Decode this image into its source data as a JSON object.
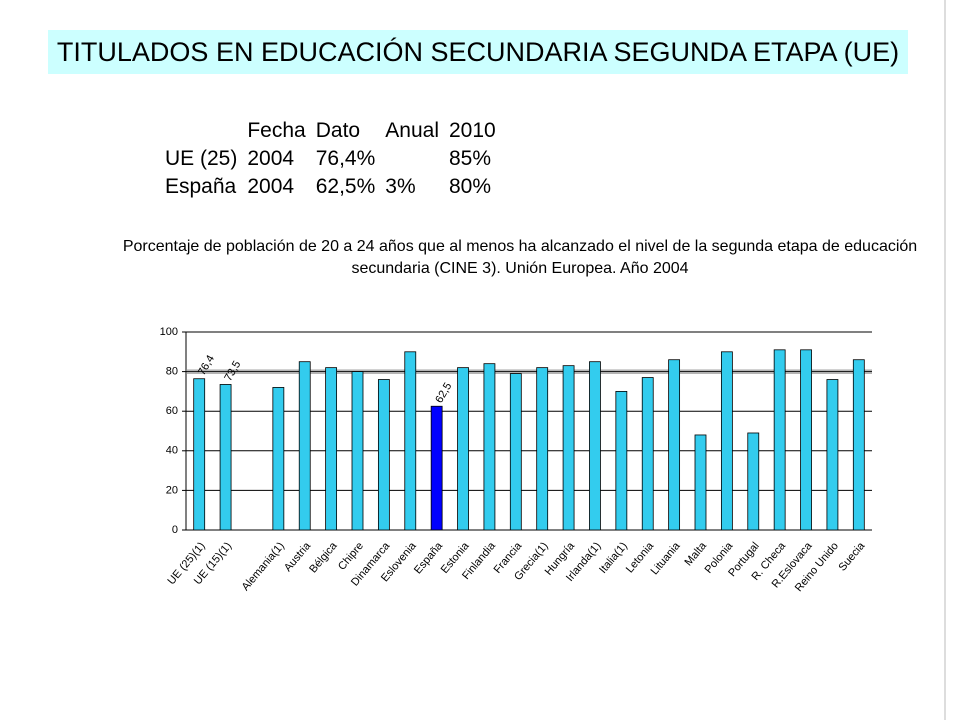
{
  "header": {
    "title": "TITULADOS EN EDUCACIÓN SECUNDARIA SEGUNDA ETAPA (UE)"
  },
  "table": {
    "columns": [
      "Fecha",
      "Dato",
      "Anual",
      "2010"
    ],
    "rows": [
      {
        "label": "UE (25)",
        "cells": [
          "2004",
          "76,4%",
          null,
          "85%"
        ]
      },
      {
        "label": "España",
        "cells": [
          "2004",
          "62,5%",
          "3%",
          "80%"
        ]
      }
    ]
  },
  "chart_data": {
    "type": "bar",
    "title": "Porcentaje de población de 20 a 24 años que al menos ha alcanzado el nivel de la segunda etapa de educación secundaria (CINE 3). Unión Europea. Año 2004",
    "categories": [
      "UE (25)(1)",
      "UE (15)(1)",
      null,
      "Alemania(1)",
      "Austria",
      "Bélgica",
      "Chipre",
      "Dinamarca",
      "Eslovenia",
      "España",
      "Estonia",
      "Finlandia",
      "Francia",
      "Grecia(1)",
      "Hungría",
      "Irlanda(1)",
      "Italia(1)",
      "Letonia",
      "Lituania",
      "Malta",
      "Polonia",
      "Portugal",
      "R. Checa",
      "R.Eslovaca",
      "Reino Unido",
      "Suecia"
    ],
    "values": [
      76.4,
      73.5,
      null,
      72,
      85,
      82,
      80,
      76,
      90,
      62.5,
      82,
      84,
      79,
      82,
      83,
      85,
      70,
      77,
      86,
      48,
      90,
      49,
      91,
      91,
      76,
      86
    ],
    "value_labels": [
      "76,4",
      "73,5",
      null,
      null,
      null,
      null,
      null,
      null,
      null,
      "62,5",
      null,
      null,
      null,
      null,
      null,
      null,
      null,
      null,
      null,
      null,
      null,
      null,
      null,
      null,
      null,
      null
    ],
    "colors": [
      "#33ccee",
      "#33ccee",
      "#33ccee",
      "#33ccee",
      "#33ccee",
      "#33ccee",
      "#33ccee",
      "#33ccee",
      "#33ccee",
      "#0000ff",
      "#33ccee",
      "#33ccee",
      "#33ccee",
      "#33ccee",
      "#33ccee",
      "#33ccee",
      "#33ccee",
      "#33ccee",
      "#33ccee",
      "#33ccee",
      "#33ccee",
      "#33ccee",
      "#33ccee",
      "#33ccee",
      "#33ccee",
      "#33ccee"
    ],
    "reference_line": 80,
    "ylim": [
      0,
      100
    ],
    "yticks": [
      0,
      20,
      40,
      60,
      80,
      100
    ],
    "grid": true
  }
}
